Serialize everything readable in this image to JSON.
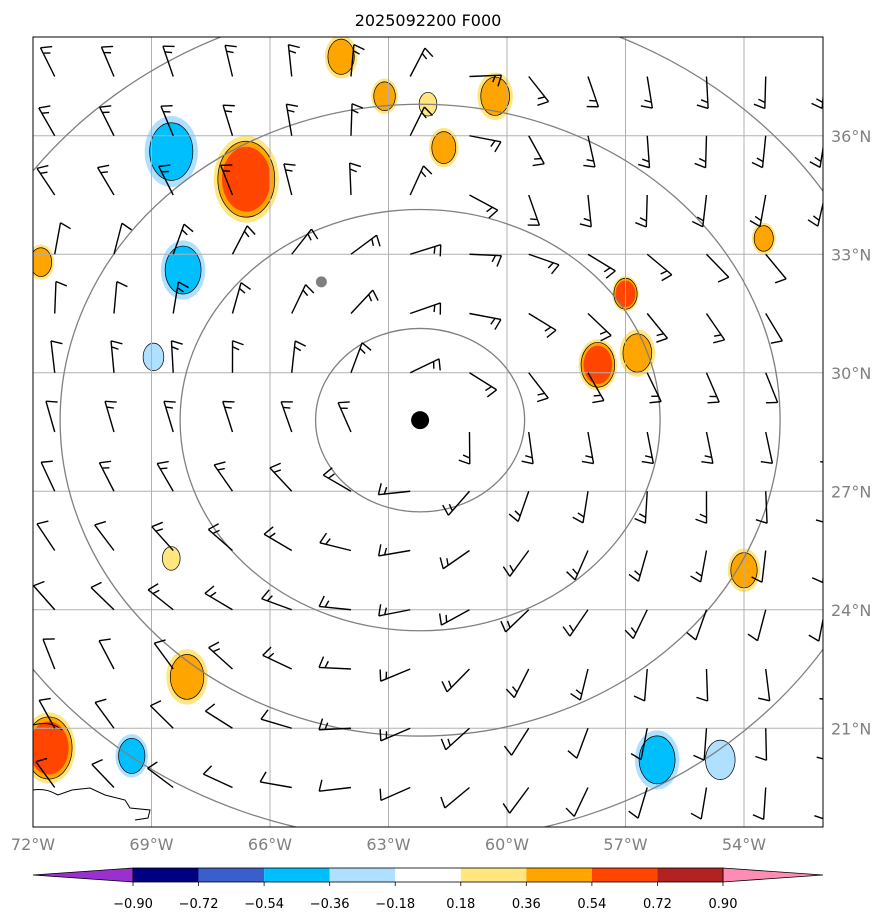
{
  "chart_data": {
    "type": "contour-map",
    "title": "2025092200 F000",
    "x_range": [
      -72,
      -52
    ],
    "y_range": [
      18.5,
      38.5
    ],
    "lon_ticks": [
      {
        "value": -72,
        "label": "72°W"
      },
      {
        "value": -69,
        "label": "69°W"
      },
      {
        "value": -66,
        "label": "66°W"
      },
      {
        "value": -63,
        "label": "63°W"
      },
      {
        "value": -60,
        "label": "60°W"
      },
      {
        "value": -57,
        "label": "57°W"
      },
      {
        "value": -54,
        "label": "54°W"
      }
    ],
    "lat_ticks": [
      {
        "value": 36,
        "label": "36°N"
      },
      {
        "value": 33,
        "label": "33°N"
      },
      {
        "value": 30,
        "label": "30°N"
      },
      {
        "value": 27,
        "label": "27°N"
      },
      {
        "value": 24,
        "label": "24°N"
      },
      {
        "value": 21,
        "label": "21°N"
      }
    ],
    "grid": true,
    "center": {
      "lon": -62.2,
      "lat": 28.8
    },
    "secondary_marker": {
      "lon": -64.7,
      "lat": 32.3
    },
    "range_rings_deg": [
      2.7,
      6.2,
      9.3,
      12.4
    ],
    "colorbar": {
      "levels": [
        "−0.90",
        "−0.72",
        "−0.54",
        "−0.36",
        "−0.18",
        "0.18",
        "0.36",
        "0.54",
        "0.72",
        "0.90"
      ],
      "colors": [
        "#9b30d0",
        "#000080",
        "#3a5fcd",
        "#00bfff",
        "#b0e0ff",
        "#ffffff",
        "#ffe680",
        "#ffa500",
        "#ff4500",
        "#b22222",
        "#ff8cb4"
      ],
      "extend": "both"
    },
    "shaded_features": [
      {
        "lon": -68.5,
        "lat": 35.6,
        "radius": 0.9,
        "level": -0.36
      },
      {
        "lon": -68.2,
        "lat": 32.6,
        "radius": 0.75,
        "level": -0.36
      },
      {
        "lon": -68.95,
        "lat": 30.4,
        "radius": 0.35,
        "level": -0.18
      },
      {
        "lon": -71.8,
        "lat": 32.8,
        "radius": 0.45,
        "level": 0.36
      },
      {
        "lon": -66.6,
        "lat": 34.9,
        "radius": 1.1,
        "level": 0.54
      },
      {
        "lon": -64.2,
        "lat": 38.0,
        "radius": 0.55,
        "level": 0.36
      },
      {
        "lon": -63.1,
        "lat": 37.0,
        "radius": 0.45,
        "level": 0.36
      },
      {
        "lon": -62.0,
        "lat": 36.8,
        "radius": 0.3,
        "level": 0.18
      },
      {
        "lon": -61.6,
        "lat": 35.7,
        "radius": 0.5,
        "level": 0.36
      },
      {
        "lon": -60.3,
        "lat": 37.0,
        "radius": 0.6,
        "level": 0.36
      },
      {
        "lon": -57.7,
        "lat": 30.2,
        "radius": 0.65,
        "level": 0.54
      },
      {
        "lon": -56.7,
        "lat": 30.5,
        "radius": 0.6,
        "level": 0.36
      },
      {
        "lon": -57.0,
        "lat": 32.0,
        "radius": 0.45,
        "level": 0.54
      },
      {
        "lon": -53.5,
        "lat": 33.4,
        "radius": 0.4,
        "level": 0.36
      },
      {
        "lon": -68.5,
        "lat": 25.3,
        "radius": 0.3,
        "level": 0.18
      },
      {
        "lon": -68.1,
        "lat": 22.3,
        "radius": 0.7,
        "level": 0.36
      },
      {
        "lon": -54.0,
        "lat": 25.0,
        "radius": 0.55,
        "level": 0.36
      },
      {
        "lon": -71.6,
        "lat": 20.5,
        "radius": 0.9,
        "level": 0.54
      },
      {
        "lon": -69.5,
        "lat": 20.3,
        "radius": 0.55,
        "level": -0.36
      },
      {
        "lon": -56.2,
        "lat": 20.2,
        "radius": 0.75,
        "level": -0.36
      },
      {
        "lon": -54.6,
        "lat": 20.2,
        "radius": 0.5,
        "level": -0.18
      }
    ],
    "wind_barbs": {
      "lon_start": -72,
      "lon_step": 1.5,
      "lat_start": 37.5,
      "lat_step": -1.5,
      "columns": 14,
      "rows": 13,
      "calm_points": []
    }
  }
}
